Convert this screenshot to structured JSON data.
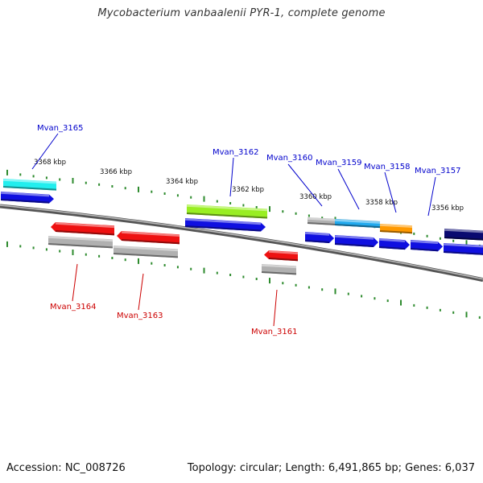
{
  "title": "Mycobacterium vanbaalenii PYR-1, complete genome",
  "footer": {
    "accession": "Accession: NC_008726",
    "summary": "Topology: circular; Length: 6,491,865 bp; Genes: 6,037"
  },
  "colors": {
    "backbone": "#8a8a8a",
    "tick": "#2e8b2e",
    "label_forward": "#0000cc",
    "label_reverse": "#cc0000",
    "gene_blue": "#1010e0",
    "gene_red": "#ee1111",
    "gene_gray": "#b0b0b0",
    "gene_cyan": "#22eeee",
    "gene_lime": "#99ee22",
    "gene_lightblue": "#22aaee",
    "gene_orange": "#ff9900",
    "gene_navy": "#0a0a70"
  },
  "scale_labels": [
    "3368 kbp",
    "3366 kbp",
    "3364 kbp",
    "3362 kbp",
    "3360 kbp",
    "3358 kbp",
    "3356 kbp"
  ],
  "genes": [
    {
      "name": "Mvan_3165",
      "strand": "forward"
    },
    {
      "name": "Mvan_3164",
      "strand": "reverse"
    },
    {
      "name": "Mvan_3163",
      "strand": "reverse"
    },
    {
      "name": "Mvan_3162",
      "strand": "forward"
    },
    {
      "name": "Mvan_3161",
      "strand": "reverse"
    },
    {
      "name": "Mvan_3160",
      "strand": "forward"
    },
    {
      "name": "Mvan_3159",
      "strand": "forward"
    },
    {
      "name": "Mvan_3158",
      "strand": "forward"
    },
    {
      "name": "Mvan_3157",
      "strand": "forward"
    }
  ]
}
